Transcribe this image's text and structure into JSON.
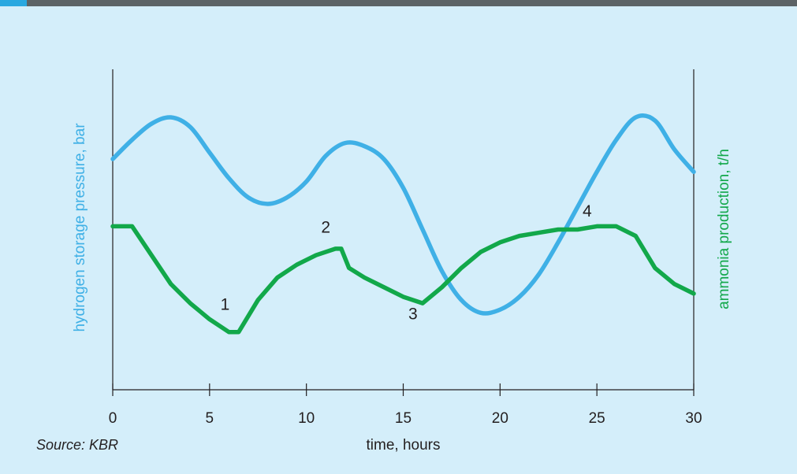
{
  "source": "Source: KBR",
  "colors": {
    "pressure": "#3fb0e6",
    "ammonia": "#12a84a",
    "axis": "#231f20",
    "background": "#d4eefa"
  },
  "chart_data": {
    "type": "line",
    "title": "",
    "xlabel": "time, hours",
    "ylabel_left": "hydrogen storage pressure, bar",
    "ylabel_right": "ammonia production, t/h",
    "xlim": [
      0,
      30
    ],
    "ylim": [
      0,
      10
    ],
    "x_ticks": [
      0,
      5,
      10,
      15,
      20,
      25,
      30
    ],
    "y_ticks_shown": false,
    "grid": false,
    "legend": "none",
    "series": [
      {
        "name": "hydrogen storage pressure",
        "axis": "left",
        "x": [
          0,
          1,
          2,
          3,
          4,
          5,
          6,
          7,
          8,
          9,
          10,
          11,
          12,
          13,
          14,
          15,
          16,
          17,
          18,
          19,
          20,
          21,
          22,
          23,
          24,
          25,
          26,
          27,
          28,
          29,
          30
        ],
        "values": [
          7.2,
          7.8,
          8.3,
          8.5,
          8.2,
          7.4,
          6.6,
          6.0,
          5.8,
          6.0,
          6.5,
          7.3,
          7.7,
          7.6,
          7.2,
          6.3,
          5.0,
          3.7,
          2.8,
          2.4,
          2.5,
          2.9,
          3.6,
          4.6,
          5.7,
          6.8,
          7.8,
          8.5,
          8.4,
          7.5,
          6.8
        ]
      },
      {
        "name": "ammonia production",
        "axis": "right",
        "x": [
          0,
          1,
          2,
          3,
          4,
          5,
          6,
          6.5,
          7.5,
          8.5,
          9.5,
          10.5,
          11.5,
          11.8,
          12.2,
          13,
          14,
          15,
          16,
          17,
          18,
          19,
          20,
          21,
          22,
          23,
          24,
          25,
          26,
          27,
          28,
          29,
          30
        ],
        "values": [
          5.1,
          5.1,
          4.2,
          3.3,
          2.7,
          2.2,
          1.8,
          1.8,
          2.8,
          3.5,
          3.9,
          4.2,
          4.4,
          4.4,
          3.8,
          3.5,
          3.2,
          2.9,
          2.7,
          3.2,
          3.8,
          4.3,
          4.6,
          4.8,
          4.9,
          5.0,
          5.0,
          5.1,
          5.1,
          4.8,
          3.8,
          3.3,
          3.0
        ]
      }
    ],
    "annotations": [
      {
        "text": "1",
        "x": 5.8,
        "y": 2.5
      },
      {
        "text": "2",
        "x": 11.0,
        "y": 4.9
      },
      {
        "text": "3",
        "x": 15.5,
        "y": 2.2
      },
      {
        "text": "4",
        "x": 24.5,
        "y": 5.4
      }
    ]
  }
}
